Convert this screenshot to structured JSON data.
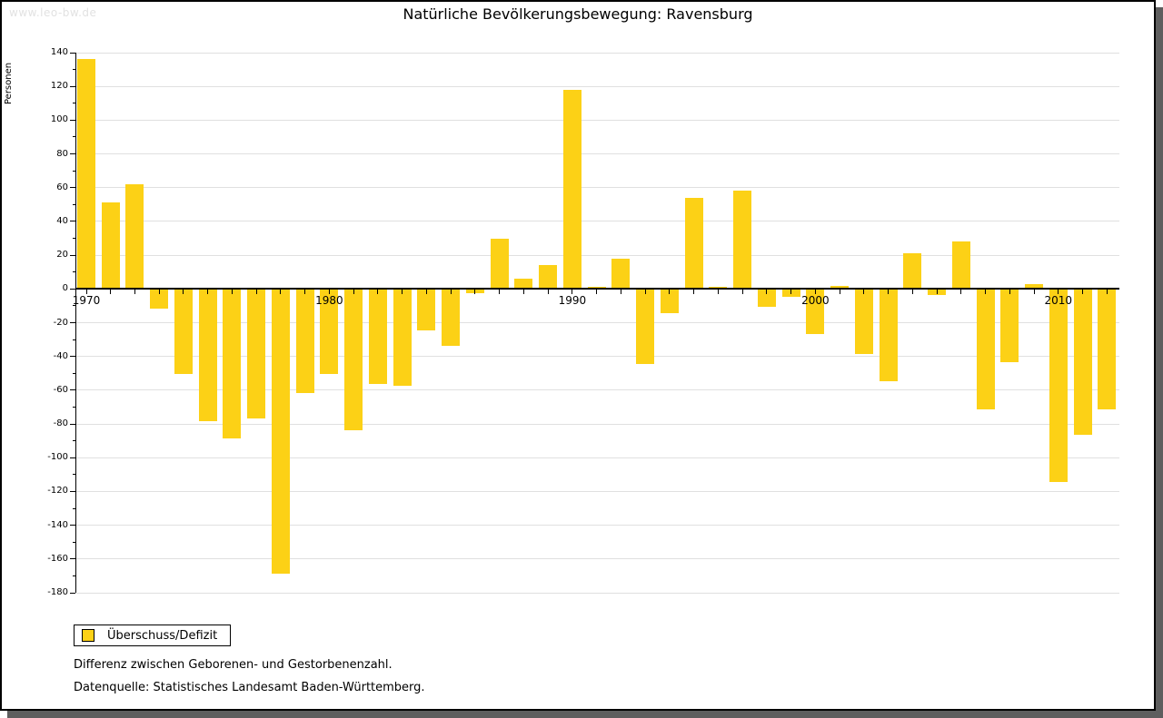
{
  "window": {
    "watermark": "www.leo-bw.de"
  },
  "title": "Natürliche Bevölkerungsbewegung: Ravensburg",
  "y_axis_label": "Personen",
  "legend": {
    "label": "Überschuss/Defizit"
  },
  "footnotes": [
    "Differenz zwischen Geborenen- und Gestorbenenzahl.",
    "Datenquelle: Statistisches Landesamt Baden-Württemberg."
  ],
  "colors": {
    "bar": "#FCD116",
    "grid": "#e0e0e0",
    "axis": "#000000",
    "watermark": "#e2e2e2",
    "shadow": "#5e5e5e"
  },
  "chart_data": {
    "type": "bar",
    "title": "Natürliche Bevölkerungsbewegung: Ravensburg",
    "xlabel": "",
    "ylabel": "Personen",
    "series_name": "Überschuss/Defizit",
    "ylim": [
      -180,
      140
    ],
    "ytick_step": 20,
    "ytick_minor_step": 10,
    "grid": true,
    "legend_position": "bottom-left",
    "xtick_labels": [
      "1970",
      "1980",
      "1990",
      "2000",
      "2010"
    ],
    "x": [
      1970,
      1971,
      1972,
      1973,
      1974,
      1975,
      1976,
      1977,
      1978,
      1979,
      1980,
      1981,
      1982,
      1983,
      1984,
      1985,
      1986,
      1987,
      1988,
      1989,
      1990,
      1991,
      1992,
      1993,
      1994,
      1995,
      1996,
      1997,
      1998,
      1999,
      2000,
      2001,
      2002,
      2003,
      2004,
      2005,
      2006,
      2007,
      2008,
      2009,
      2010,
      2011,
      2012
    ],
    "values": [
      136,
      51,
      62,
      -11,
      -50,
      -78,
      -88,
      -76,
      -168,
      -61,
      -50,
      -83,
      -56,
      -57,
      -24,
      -33,
      -2,
      30,
      6,
      14,
      118,
      1,
      18,
      -44,
      -14,
      54,
      1,
      58,
      -10,
      -4,
      -26,
      2,
      -38,
      -54,
      21,
      -3,
      28,
      -71,
      -43,
      3,
      -114,
      -86,
      -71
    ]
  }
}
